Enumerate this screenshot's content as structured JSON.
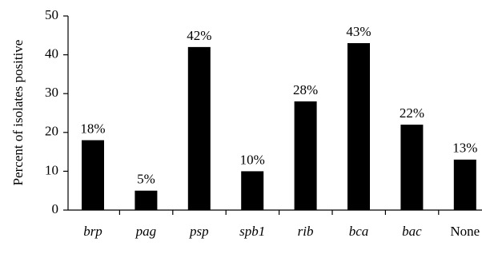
{
  "chart_data": {
    "type": "bar",
    "y_label": "Percent of isolates positive",
    "categories": [
      "brp",
      "pag",
      "psp",
      "spb1",
      "rib",
      "bca",
      "bac",
      "None"
    ],
    "values": [
      18,
      5,
      42,
      10,
      28,
      43,
      22,
      13
    ],
    "value_labels": [
      "18%",
      "5%",
      "42%",
      "10%",
      "28%",
      "43%",
      "22%",
      "13%"
    ],
    "color": "#000000",
    "ylim": [
      0,
      50
    ],
    "yticks": [
      0,
      10,
      20,
      30,
      40,
      50
    ],
    "grid": false
  }
}
